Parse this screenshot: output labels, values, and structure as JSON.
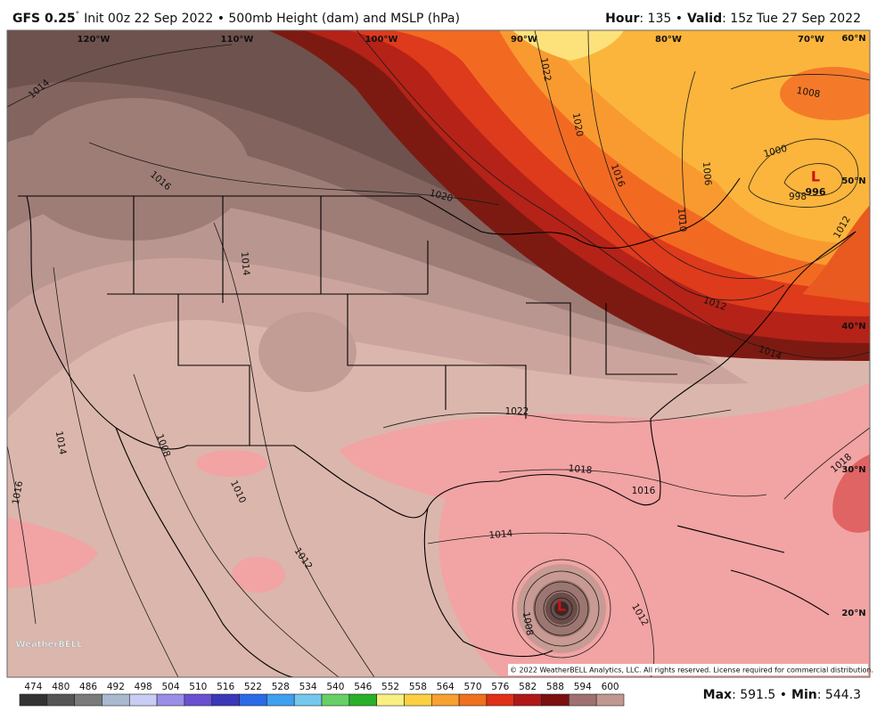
{
  "header": {
    "model": "GFS 0.25",
    "degree": "°",
    "init": "Init 00z 22 Sep 2022 • 500mb Height (dam) and MSLP (hPa)",
    "hour_label": "Hour",
    "hour": ": 135 •",
    "valid_label": "Valid",
    "valid": ": 15z Tue 27 Sep 2022"
  },
  "map": {
    "longitude_labels": [
      "120°W",
      "110°W",
      "100°W",
      "90°W",
      "80°W",
      "70°W"
    ],
    "latitude_labels": [
      "60°N",
      "50°N",
      "40°N",
      "30°N",
      "20°N"
    ],
    "isobar_labels": [
      "1014",
      "1016",
      "1020",
      "1022",
      "1020",
      "1016",
      "1006",
      "1010",
      "1008",
      "1000",
      "998",
      "1012",
      "1014",
      "1014",
      "1022",
      "1014",
      "1008",
      "1010",
      "1016",
      "1012",
      "1014",
      "1018",
      "1016",
      "1018",
      "1012",
      "1008",
      "1012"
    ],
    "low_center": {
      "symbol": "L",
      "pressure": "996"
    },
    "hurricane_symbol": "L",
    "logo": "WeatherBELL",
    "copyright": "© 2022 WeatherBELL Analytics, LLC. All rights reserved. License required for commercial distribution."
  },
  "colorbar": {
    "ticks": [
      474,
      480,
      486,
      492,
      498,
      504,
      510,
      516,
      522,
      528,
      534,
      540,
      546,
      552,
      558,
      564,
      570,
      576,
      582,
      588,
      594,
      600
    ],
    "colors": [
      "#333333",
      "#555555",
      "#7a7a7a",
      "#a9b9cf",
      "#c9cdf4",
      "#9a8ee8",
      "#6a50d0",
      "#3a38b8",
      "#2a6ae6",
      "#3f9ff0",
      "#74c8ee",
      "#66d066",
      "#28b028",
      "#f8f080",
      "#fcd040",
      "#f8a030",
      "#f07020",
      "#e03018",
      "#b01818",
      "#7a1010",
      "#a07070",
      "#c09890"
    ]
  },
  "footer": {
    "max_label": "Max",
    "max": ": 591.5 •",
    "min_label": "Min",
    "min": ": 544.3"
  }
}
